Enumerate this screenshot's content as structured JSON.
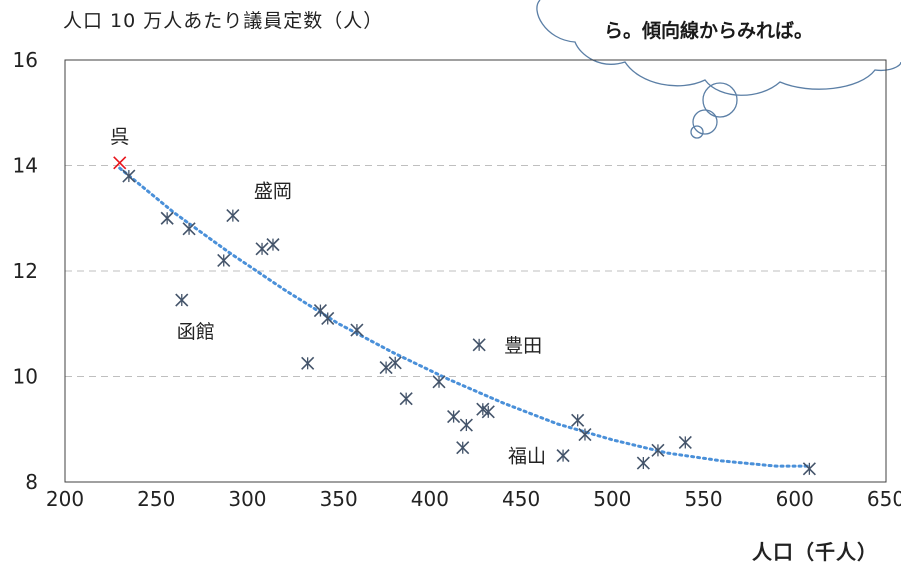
{
  "chart_data": {
    "type": "scatter",
    "ylabel": "人口 10 万人あたり議員定数（人）",
    "xlabel": "人口（千人）",
    "xlim": [
      200,
      650
    ],
    "ylim": [
      8,
      16
    ],
    "xticks": [
      "200",
      "250",
      "300",
      "350",
      "400",
      "450",
      "500",
      "550",
      "600",
      "650"
    ],
    "yticks": [
      "8",
      "10",
      "12",
      "14",
      "16"
    ],
    "grid": "horizontal dashed",
    "trendline": "dotted polynomial",
    "points": [
      {
        "x": 230,
        "y": 14.05
      },
      {
        "x": 235,
        "y": 13.8
      },
      {
        "x": 256,
        "y": 13.0
      },
      {
        "x": 268,
        "y": 12.8
      },
      {
        "x": 264,
        "y": 11.45
      },
      {
        "x": 287,
        "y": 12.2
      },
      {
        "x": 292,
        "y": 13.05
      },
      {
        "x": 308,
        "y": 12.42
      },
      {
        "x": 314,
        "y": 12.5
      },
      {
        "x": 333,
        "y": 10.25
      },
      {
        "x": 340,
        "y": 11.25
      },
      {
        "x": 344,
        "y": 11.1
      },
      {
        "x": 360,
        "y": 10.88
      },
      {
        "x": 376,
        "y": 10.17
      },
      {
        "x": 381,
        "y": 10.26
      },
      {
        "x": 387,
        "y": 9.58
      },
      {
        "x": 405,
        "y": 9.9
      },
      {
        "x": 413,
        "y": 9.24
      },
      {
        "x": 418,
        "y": 8.65
      },
      {
        "x": 420,
        "y": 9.08
      },
      {
        "x": 427,
        "y": 10.6
      },
      {
        "x": 429,
        "y": 9.38
      },
      {
        "x": 432,
        "y": 9.33
      },
      {
        "x": 473,
        "y": 8.5
      },
      {
        "x": 481,
        "y": 9.17
      },
      {
        "x": 485,
        "y": 8.9
      },
      {
        "x": 517,
        "y": 8.36
      },
      {
        "x": 525,
        "y": 8.6
      },
      {
        "x": 540,
        "y": 8.75
      },
      {
        "x": 608,
        "y": 8.25
      }
    ],
    "highlight": {
      "x": 230,
      "y": 14.05,
      "color": "#e8141b"
    },
    "trend_points": [
      [
        230,
        13.95
      ],
      [
        260,
        13.1
      ],
      [
        290,
        12.35
      ],
      [
        320,
        11.65
      ],
      [
        350,
        11.0
      ],
      [
        380,
        10.45
      ],
      [
        410,
        9.95
      ],
      [
        440,
        9.5
      ],
      [
        470,
        9.1
      ],
      [
        500,
        8.8
      ],
      [
        530,
        8.55
      ],
      [
        560,
        8.4
      ],
      [
        590,
        8.3
      ],
      [
        608,
        8.3
      ]
    ],
    "annotations": [
      {
        "text": "呉",
        "x": 230,
        "y": 14.05,
        "anchor": "above"
      },
      {
        "text": "盛岡",
        "x": 292,
        "y": 13.05,
        "anchor": "above-right"
      },
      {
        "text": "函館",
        "x": 264,
        "y": 11.45,
        "anchor": "below"
      },
      {
        "text": "豊田",
        "x": 427,
        "y": 10.6,
        "anchor": "right"
      },
      {
        "text": "福山",
        "x": 473,
        "y": 8.5,
        "anchor": "left"
      }
    ]
  },
  "callout": {
    "text": "ら。傾向線からみれば。"
  },
  "colors": {
    "marker": "#44546a",
    "highlight": "#e8141b",
    "trend": "#4a90d9",
    "grid": "#bfbfbf",
    "axis": "#404040",
    "cloud": "#5b7fa6"
  }
}
